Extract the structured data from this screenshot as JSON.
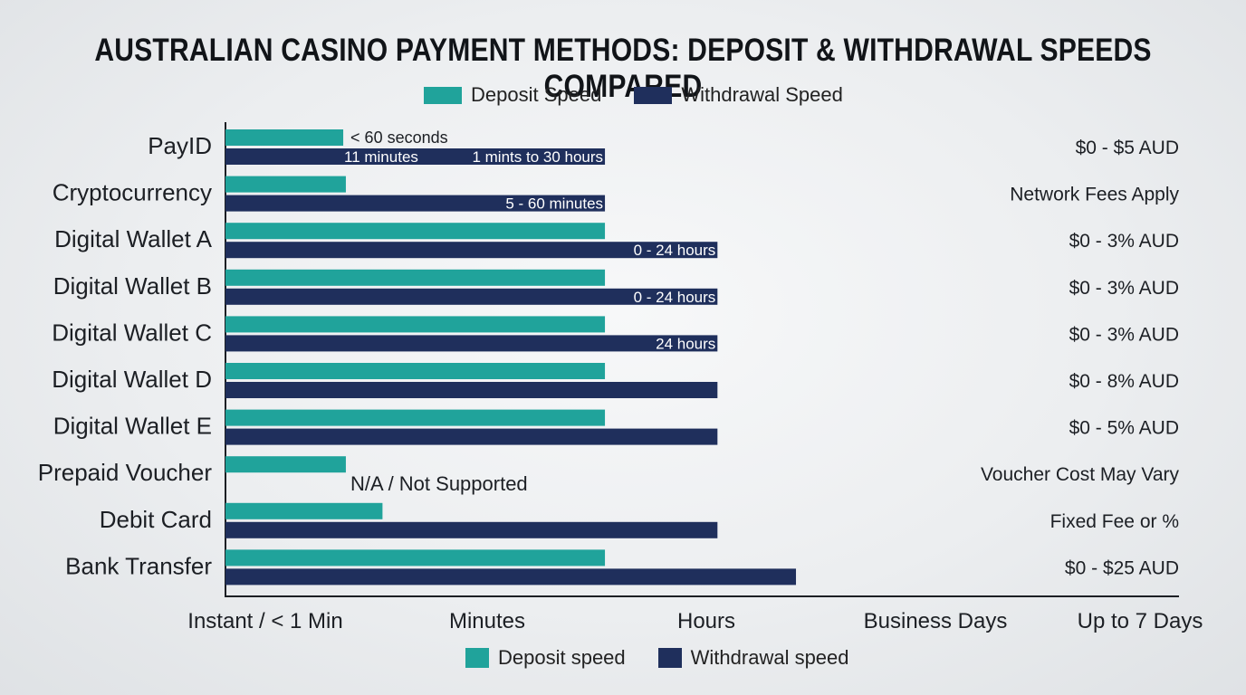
{
  "title": "AUSTRALIAN CASINO PAYMENT METHODS: DEPOSIT & WITHDRAWAL SPEEDS COMPARED",
  "legend_top": [
    {
      "label": "Deposit Speed",
      "color": "#20a39b"
    },
    {
      "label": "Withdrawal Speed",
      "color": "#1f2f5c"
    }
  ],
  "legend_bottom": [
    {
      "label": "Deposit speed",
      "color": "#20a39b"
    },
    {
      "label": "Withdrawal speed",
      "color": "#1f2f5c"
    }
  ],
  "chart_data": {
    "type": "bar",
    "orientation": "horizontal",
    "x_axis_tick_labels": [
      "Instant / < 1 Min",
      "Minutes",
      "Hours",
      "Business Days",
      "Up to 7 Days"
    ],
    "x_scale_note": "ordinal speed scale: 0 = Instant / < 1 Min, 1 = Minutes, 2 = Hours, 3 = Business Days, 4 = Up to 7 Days",
    "xlim": [
      0,
      4
    ],
    "categories": [
      "PayID",
      "Cryptocurrency",
      "Digital Wallet A",
      "Digital Wallet B",
      "Digital Wallet C",
      "Digital Wallet D",
      "Digital Wallet E",
      "Prepaid Voucher",
      "Debit Card",
      "Bank Transfer"
    ],
    "series": [
      {
        "name": "Deposit Speed",
        "color": "#20a39b",
        "values": [
          0.45,
          0.46,
          1.45,
          1.45,
          1.45,
          1.45,
          1.45,
          0.46,
          0.6,
          1.45
        ]
      },
      {
        "name": "Withdrawal Speed",
        "color": "#1f2f5c",
        "values": [
          1.45,
          1.45,
          1.88,
          1.88,
          1.88,
          1.88,
          1.88,
          null,
          1.88,
          2.18
        ]
      }
    ],
    "bar_labels": {
      "PayID": {
        "deposit": "< 60 seconds",
        "withdrawal_left": "11 minutes",
        "withdrawal": "1 mints to 30 hours"
      },
      "Cryptocurrency": {
        "withdrawal": "5 - 60 minutes"
      },
      "Digital Wallet A": {
        "withdrawal": "0 - 24 hours"
      },
      "Digital Wallet B": {
        "withdrawal": "0 - 24 hours"
      },
      "Digital Wallet C": {
        "withdrawal": "24 hours"
      },
      "Prepaid Voucher": {
        "withdrawal": "N/A / Not Supported"
      }
    },
    "fees": [
      "$0 - $5 AUD",
      "Network Fees Apply",
      "$0 - 3% AUD",
      "$0 - 3% AUD",
      "$0 - 3% AUD",
      "$0 - 8% AUD",
      "$0 - 5% AUD",
      "Voucher Cost May Vary",
      "Fixed Fee or %",
      "$0 - $25 AUD"
    ],
    "grid": false,
    "legend_position": "top and bottom"
  }
}
